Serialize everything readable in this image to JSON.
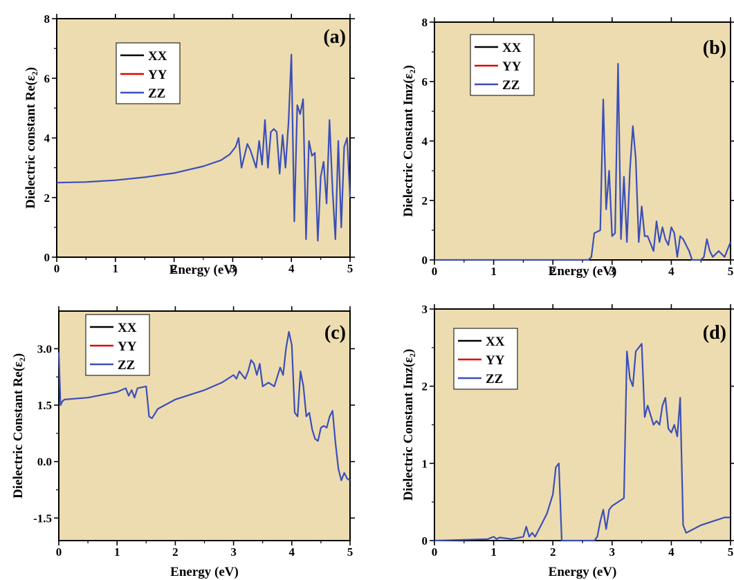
{
  "colors": {
    "background": "#eddcb0",
    "XX": "#000000",
    "YY": "#e00000",
    "ZZ": "#3a4fb8"
  },
  "chart_data": [
    {
      "panel": "(a)",
      "type": "line",
      "xlabel": "Energy (eV)",
      "ylabel": "Dielectric constant Re(ε₂)",
      "xlim": [
        0,
        5
      ],
      "ylim": [
        0,
        8
      ],
      "xticks": [
        0,
        1,
        2,
        3,
        4,
        5
      ],
      "xticklabels": [
        "0",
        "1",
        "2",
        "3",
        "4",
        "5"
      ],
      "yticks": [
        0,
        2,
        4,
        6,
        8
      ],
      "yticklabels": [
        "0",
        "2",
        "4",
        "6",
        "8"
      ],
      "legend": [
        "XX",
        "YY",
        "ZZ"
      ],
      "legend_position": "top-left",
      "grid": false,
      "series": [
        {
          "name": "ZZ",
          "note": "XX and YY coincide with ZZ",
          "x": [
            0,
            0.5,
            1.0,
            1.5,
            2.0,
            2.5,
            2.8,
            2.95,
            3.05,
            3.1,
            3.15,
            3.25,
            3.3,
            3.4,
            3.45,
            3.5,
            3.55,
            3.6,
            3.65,
            3.7,
            3.75,
            3.8,
            3.85,
            3.9,
            3.95,
            4.0,
            4.05,
            4.1,
            4.15,
            4.2,
            4.25,
            4.3,
            4.35,
            4.4,
            4.45,
            4.5,
            4.55,
            4.6,
            4.65,
            4.7,
            4.75,
            4.8,
            4.85,
            4.9,
            4.95,
            5.0
          ],
          "y": [
            2.5,
            2.52,
            2.58,
            2.68,
            2.82,
            3.05,
            3.25,
            3.45,
            3.7,
            4.0,
            3.0,
            3.8,
            3.6,
            3.0,
            3.9,
            3.1,
            4.6,
            3.0,
            4.2,
            4.3,
            4.2,
            2.8,
            4.1,
            3.0,
            4.5,
            6.8,
            1.2,
            5.1,
            4.8,
            5.3,
            0.6,
            3.9,
            3.4,
            3.5,
            0.55,
            2.7,
            3.2,
            1.8,
            4.6,
            2.3,
            0.6,
            3.9,
            1.0,
            3.7,
            4.0,
            2.0
          ]
        }
      ]
    },
    {
      "panel": "(b)",
      "type": "line",
      "xlabel": "Energy (eV)",
      "ylabel": "Dielectric Constant Imz(ε₂)",
      "xlim": [
        0,
        5
      ],
      "ylim": [
        0,
        8
      ],
      "xticks": [
        0,
        1,
        2,
        3,
        4,
        5
      ],
      "xticklabels": [
        "0",
        "1",
        "2",
        "3",
        "4",
        "5"
      ],
      "yticks": [
        0,
        2,
        4,
        6,
        8
      ],
      "yticklabels": [
        "0",
        "2",
        "4",
        "6",
        "8"
      ],
      "legend": [
        "XX",
        "YY",
        "ZZ"
      ],
      "legend_position": "top-left",
      "grid": false,
      "series": [
        {
          "name": "ZZ",
          "note": "XX and YY coincide with ZZ",
          "x": [
            0,
            2.6,
            2.65,
            2.7,
            2.8,
            2.85,
            2.9,
            2.95,
            3.0,
            3.05,
            3.1,
            3.15,
            3.2,
            3.25,
            3.3,
            3.35,
            3.4,
            3.45,
            3.5,
            3.55,
            3.6,
            3.7,
            3.75,
            3.8,
            3.85,
            3.9,
            3.95,
            4.0,
            4.05,
            4.1,
            4.15,
            4.2,
            4.3,
            4.35,
            4.5,
            4.55,
            4.6,
            4.65,
            4.7,
            4.8,
            4.9,
            5.0
          ],
          "y": [
            0,
            0,
            0.1,
            0.9,
            1.0,
            5.4,
            1.7,
            3.0,
            0.8,
            0.9,
            6.6,
            0.7,
            2.8,
            0.6,
            3.0,
            4.5,
            3.4,
            0.6,
            1.8,
            0.8,
            0.8,
            0.3,
            1.3,
            0.6,
            1.1,
            0.7,
            0.5,
            1.1,
            0.9,
            0.1,
            0.8,
            0.7,
            0.3,
            0.0,
            0.0,
            0.1,
            0.7,
            0.3,
            0.1,
            0.3,
            0.1,
            0.6
          ]
        }
      ]
    },
    {
      "panel": "(c)",
      "type": "line",
      "xlabel": "Energy (eV)",
      "ylabel": "Dielectric Constant Re(ε₂)",
      "xlim": [
        0,
        5
      ],
      "ylim": [
        -2.1,
        4.0
      ],
      "xticks": [
        0,
        1,
        2,
        3,
        4,
        5
      ],
      "xticklabels": [
        "0",
        "1",
        "2",
        "3",
        "4",
        "5"
      ],
      "yticks": [
        -1.5,
        0.0,
        1.5,
        3.0
      ],
      "yticklabels": [
        "-1.5",
        "0.0",
        "1.5",
        "3.0"
      ],
      "legend": [
        "XX",
        "YY",
        "ZZ"
      ],
      "legend_position": "top-left",
      "grid": false,
      "series": [
        {
          "name": "ZZ",
          "note": "XX and YY coincide with ZZ",
          "x": [
            0,
            0.03,
            0.06,
            0.1,
            0.5,
            1.0,
            1.15,
            1.2,
            1.25,
            1.3,
            1.35,
            1.5,
            1.55,
            1.6,
            1.7,
            2.0,
            2.5,
            2.8,
            3.0,
            3.05,
            3.1,
            3.15,
            3.2,
            3.25,
            3.3,
            3.35,
            3.4,
            3.45,
            3.5,
            3.6,
            3.7,
            3.8,
            3.85,
            3.9,
            3.95,
            4.0,
            4.05,
            4.1,
            4.15,
            4.2,
            4.25,
            4.3,
            4.35,
            4.4,
            4.45,
            4.5,
            4.55,
            4.6,
            4.65,
            4.7,
            4.75,
            4.8,
            4.85,
            4.9,
            4.95,
            5.0
          ],
          "y": [
            2.9,
            1.5,
            1.6,
            1.65,
            1.7,
            1.85,
            1.95,
            1.75,
            1.9,
            1.7,
            1.95,
            2.0,
            1.2,
            1.15,
            1.4,
            1.65,
            1.9,
            2.1,
            2.3,
            2.2,
            2.4,
            2.3,
            2.2,
            2.4,
            2.7,
            2.6,
            2.3,
            2.6,
            2.0,
            2.1,
            2.0,
            2.5,
            2.3,
            3.0,
            3.45,
            3.1,
            1.3,
            1.2,
            2.4,
            2.0,
            1.2,
            1.3,
            0.85,
            0.6,
            0.55,
            0.9,
            0.95,
            0.9,
            1.2,
            1.35,
            0.5,
            -0.2,
            -0.5,
            -0.3,
            -0.45,
            -0.5
          ]
        }
      ]
    },
    {
      "panel": "(d)",
      "type": "line",
      "xlabel": "Energy (eV)",
      "ylabel": "Dielectric Constant Imz(ε₂)",
      "xlim": [
        0,
        5
      ],
      "ylim": [
        0,
        3
      ],
      "xticks": [
        0,
        1,
        2,
        3,
        4,
        5
      ],
      "xticklabels": [
        "0",
        "1",
        "2",
        "3",
        "4",
        "5"
      ],
      "yticks": [
        0,
        1,
        2,
        3
      ],
      "yticklabels": [
        "0",
        "1",
        "2",
        "3"
      ],
      "legend": [
        "XX",
        "YY",
        "ZZ"
      ],
      "legend_position": "top-left",
      "grid": false,
      "series": [
        {
          "name": "ZZ",
          "note": "XX and YY coincide with ZZ",
          "x": [
            0,
            0.9,
            1.0,
            1.05,
            1.1,
            1.3,
            1.5,
            1.55,
            1.6,
            1.65,
            1.7,
            1.8,
            1.9,
            2.0,
            2.05,
            2.1,
            2.15,
            2.2,
            2.7,
            2.75,
            2.8,
            2.85,
            2.9,
            2.95,
            3.0,
            3.2,
            3.25,
            3.3,
            3.35,
            3.4,
            3.45,
            3.5,
            3.55,
            3.6,
            3.7,
            3.75,
            3.8,
            3.85,
            3.9,
            3.95,
            4.0,
            4.05,
            4.1,
            4.15,
            4.2,
            4.25,
            4.3,
            4.5,
            4.7,
            4.9,
            5.0
          ],
          "y": [
            0,
            0.02,
            0.05,
            0.02,
            0.04,
            0.02,
            0.05,
            0.18,
            0.05,
            0.1,
            0.05,
            0.2,
            0.35,
            0.6,
            0.95,
            1.0,
            0.0,
            0.0,
            0.0,
            0.05,
            0.25,
            0.4,
            0.15,
            0.4,
            0.45,
            0.55,
            2.45,
            2.1,
            2.0,
            2.45,
            2.5,
            2.55,
            1.6,
            1.75,
            1.5,
            1.55,
            1.5,
            1.75,
            1.85,
            1.45,
            1.4,
            1.5,
            1.35,
            1.85,
            0.2,
            0.1,
            0.12,
            0.2,
            0.25,
            0.3,
            0.3
          ]
        }
      ]
    }
  ]
}
